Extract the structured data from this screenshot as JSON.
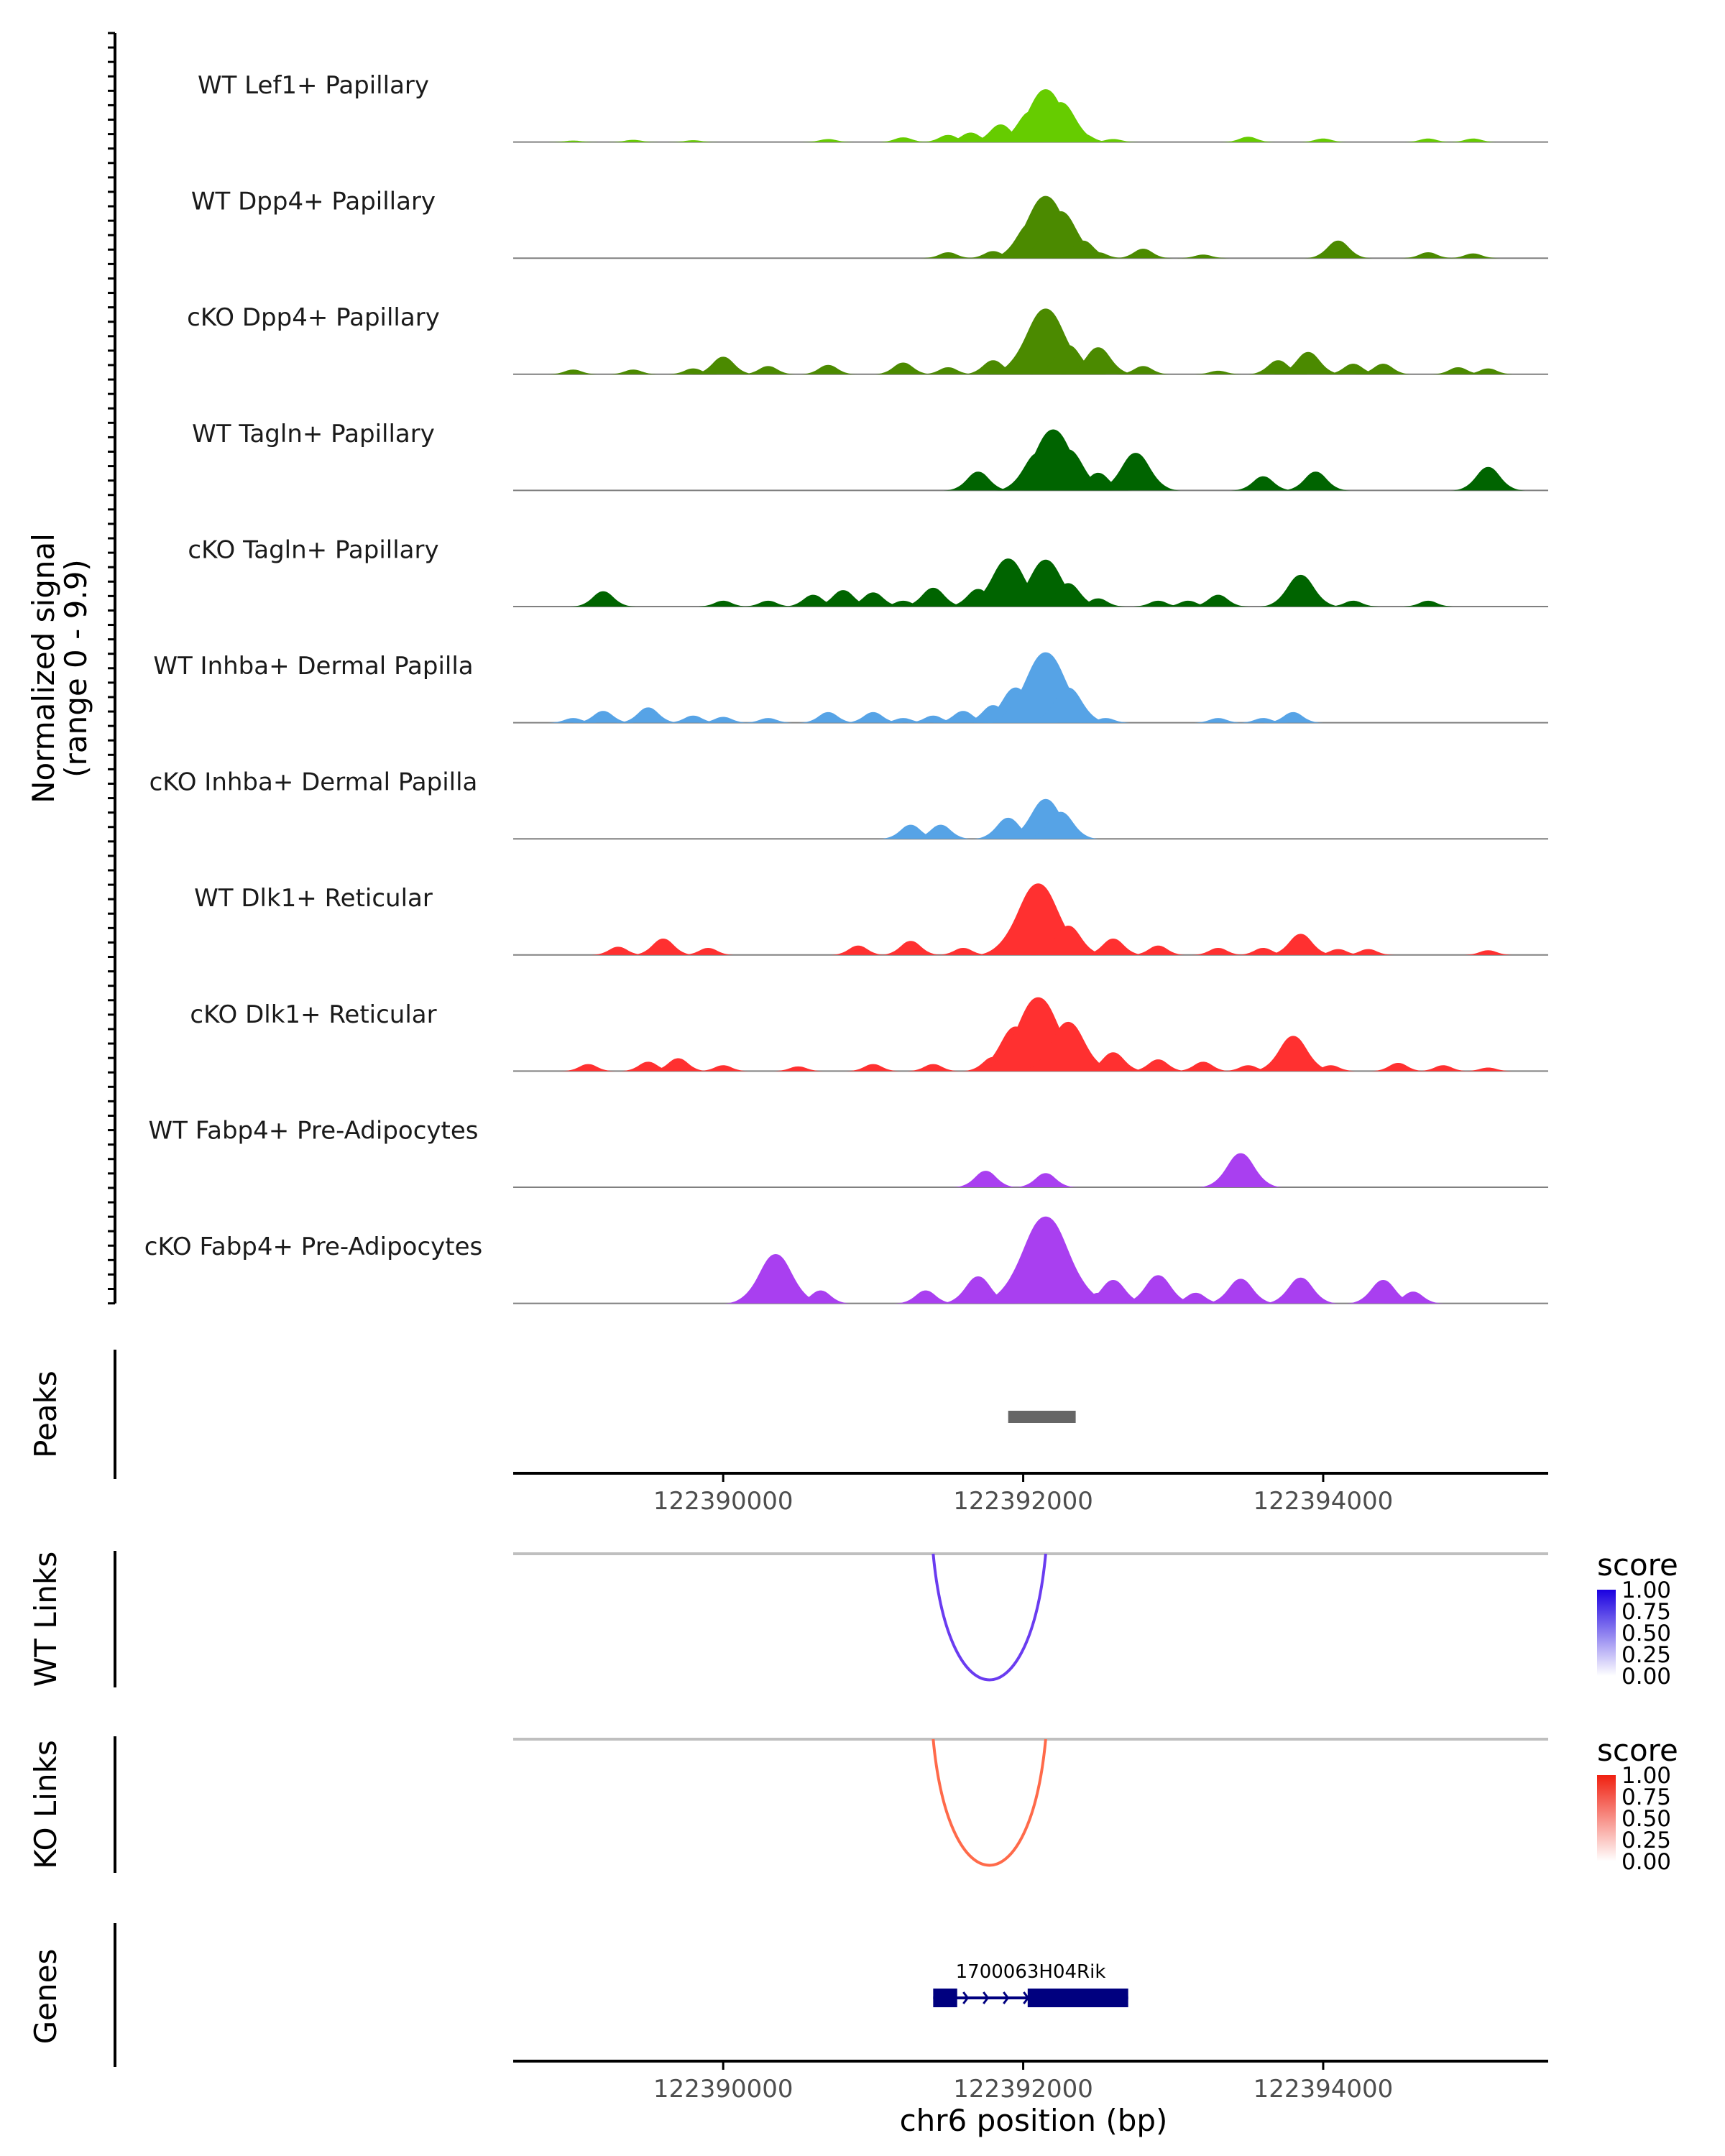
{
  "chart_data": {
    "type": "area",
    "title": "",
    "xlabel": "chr6 position (bp)",
    "xlim": [
      122388600,
      122395500
    ],
    "x_ticks": [
      122390000,
      122392000,
      122394000
    ],
    "x_tick_labels": [
      "122390000",
      "122392000",
      "122394000"
    ],
    "signal_axis_label": "Normalized signal",
    "signal_range_label": "(range 0 - 9.9)",
    "ylim": [
      0,
      9.9
    ],
    "series": [
      {
        "name": "WT Lef1+ Papillary",
        "color": "#66cc00",
        "points": [
          [
            122389000,
            0.12
          ],
          [
            122389400,
            0.18
          ],
          [
            122389800,
            0.15
          ],
          [
            122390700,
            0.25
          ],
          [
            122391200,
            0.4
          ],
          [
            122391500,
            0.6
          ],
          [
            122391650,
            0.8
          ],
          [
            122391850,
            1.5
          ],
          [
            122391950,
            0.6
          ],
          [
            122392050,
            2.6
          ],
          [
            122392150,
            4.5
          ],
          [
            122392250,
            3.4
          ],
          [
            122392400,
            0.7
          ],
          [
            122392600,
            0.25
          ],
          [
            122393500,
            0.45
          ],
          [
            122394000,
            0.3
          ],
          [
            122394700,
            0.3
          ],
          [
            122395000,
            0.3
          ]
        ]
      },
      {
        "name": "WT Dpp4+ Papillary",
        "color": "#4b8a00",
        "points": [
          [
            122391500,
            0.5
          ],
          [
            122391800,
            0.6
          ],
          [
            122392050,
            3.0
          ],
          [
            122392150,
            5.3
          ],
          [
            122392250,
            4.0
          ],
          [
            122392400,
            1.5
          ],
          [
            122392500,
            0.5
          ],
          [
            122392800,
            0.8
          ],
          [
            122393200,
            0.3
          ],
          [
            122394100,
            1.5
          ],
          [
            122394700,
            0.5
          ],
          [
            122395000,
            0.4
          ]
        ]
      },
      {
        "name": "cKO Dpp4+ Papillary",
        "color": "#4b8a00",
        "points": [
          [
            122389000,
            0.4
          ],
          [
            122389400,
            0.4
          ],
          [
            122389800,
            0.5
          ],
          [
            122390000,
            1.5
          ],
          [
            122390300,
            0.7
          ],
          [
            122390700,
            0.8
          ],
          [
            122391200,
            1.0
          ],
          [
            122391500,
            0.6
          ],
          [
            122391800,
            1.2
          ],
          [
            122392050,
            2.0
          ],
          [
            122392150,
            5.6
          ],
          [
            122392300,
            2.5
          ],
          [
            122392500,
            2.3
          ],
          [
            122392800,
            0.7
          ],
          [
            122393300,
            0.3
          ],
          [
            122393700,
            1.2
          ],
          [
            122393900,
            1.9
          ],
          [
            122394200,
            0.9
          ],
          [
            122394400,
            0.9
          ],
          [
            122394900,
            0.6
          ],
          [
            122395100,
            0.5
          ]
        ]
      },
      {
        "name": "WT Tagln+ Papillary",
        "color": "#006400",
        "points": [
          [
            122391700,
            1.6
          ],
          [
            122392100,
            3.2
          ],
          [
            122392200,
            5.2
          ],
          [
            122392300,
            3.5
          ],
          [
            122392500,
            1.5
          ],
          [
            122392750,
            3.2
          ],
          [
            122393600,
            1.2
          ],
          [
            122393950,
            1.6
          ],
          [
            122395100,
            2.0
          ]
        ]
      },
      {
        "name": "cKO Tagln+ Papillary",
        "color": "#006400",
        "points": [
          [
            122389200,
            1.3
          ],
          [
            122390000,
            0.5
          ],
          [
            122390300,
            0.5
          ],
          [
            122390600,
            1.0
          ],
          [
            122390800,
            1.4
          ],
          [
            122391000,
            1.2
          ],
          [
            122391200,
            0.5
          ],
          [
            122391400,
            1.6
          ],
          [
            122391700,
            1.5
          ],
          [
            122391900,
            4.1
          ],
          [
            122392150,
            4.0
          ],
          [
            122392300,
            2.0
          ],
          [
            122392500,
            0.7
          ],
          [
            122392900,
            0.5
          ],
          [
            122393100,
            0.5
          ],
          [
            122393300,
            1.0
          ],
          [
            122393850,
            2.7
          ],
          [
            122394200,
            0.5
          ],
          [
            122394700,
            0.5
          ]
        ]
      },
      {
        "name": "WT Inhba+ Dermal Papilla",
        "color": "#56a3e6",
        "points": [
          [
            122389000,
            0.4
          ],
          [
            122389200,
            1.0
          ],
          [
            122389500,
            1.3
          ],
          [
            122389800,
            0.6
          ],
          [
            122390000,
            0.5
          ],
          [
            122390300,
            0.4
          ],
          [
            122390700,
            0.9
          ],
          [
            122391000,
            0.9
          ],
          [
            122391200,
            0.4
          ],
          [
            122391400,
            0.6
          ],
          [
            122391600,
            1.0
          ],
          [
            122391800,
            1.5
          ],
          [
            122391950,
            3.0
          ],
          [
            122392150,
            6.0
          ],
          [
            122392300,
            3.0
          ],
          [
            122392550,
            0.4
          ],
          [
            122393300,
            0.4
          ],
          [
            122393600,
            0.4
          ],
          [
            122393800,
            0.9
          ]
        ]
      },
      {
        "name": "cKO Inhba+ Dermal Papilla",
        "color": "#56a3e6",
        "points": [
          [
            122391250,
            1.2
          ],
          [
            122391450,
            1.2
          ],
          [
            122391900,
            1.8
          ],
          [
            122392150,
            3.4
          ],
          [
            122392250,
            2.3
          ]
        ]
      },
      {
        "name": "WT Dlk1+ Reticular",
        "color": "#ff3030",
        "points": [
          [
            122389300,
            0.7
          ],
          [
            122389600,
            1.4
          ],
          [
            122389900,
            0.6
          ],
          [
            122390900,
            0.8
          ],
          [
            122391250,
            1.2
          ],
          [
            122391600,
            0.6
          ],
          [
            122391900,
            1.2
          ],
          [
            122392100,
            6.1
          ],
          [
            122392300,
            2.5
          ],
          [
            122392600,
            1.4
          ],
          [
            122392900,
            0.8
          ],
          [
            122393300,
            0.6
          ],
          [
            122393600,
            0.6
          ],
          [
            122393850,
            1.8
          ],
          [
            122394100,
            0.5
          ],
          [
            122394300,
            0.5
          ],
          [
            122395100,
            0.4
          ]
        ]
      },
      {
        "name": "cKO Dlk1+ Reticular",
        "color": "#ff3030",
        "points": [
          [
            122389100,
            0.6
          ],
          [
            122389500,
            0.8
          ],
          [
            122389700,
            1.1
          ],
          [
            122390000,
            0.5
          ],
          [
            122390500,
            0.4
          ],
          [
            122391000,
            0.6
          ],
          [
            122391400,
            0.6
          ],
          [
            122391800,
            1.2
          ],
          [
            122391950,
            3.8
          ],
          [
            122392100,
            6.3
          ],
          [
            122392300,
            4.2
          ],
          [
            122392600,
            1.6
          ],
          [
            122392900,
            1.0
          ],
          [
            122393200,
            0.8
          ],
          [
            122393500,
            0.5
          ],
          [
            122393800,
            3.0
          ],
          [
            122394050,
            0.5
          ],
          [
            122394500,
            0.7
          ],
          [
            122394800,
            0.5
          ],
          [
            122395100,
            0.3
          ]
        ]
      },
      {
        "name": "WT Fabp4+ Pre-Adipocytes",
        "color": "#a93ff0",
        "points": [
          [
            122391750,
            1.4
          ],
          [
            122392150,
            1.2
          ],
          [
            122393450,
            2.9
          ]
        ]
      },
      {
        "name": "cKO Fabp4+ Pre-Adipocytes",
        "color": "#a93ff0",
        "points": [
          [
            122390350,
            4.2
          ],
          [
            122390650,
            1.1
          ],
          [
            122391350,
            1.1
          ],
          [
            122391700,
            2.3
          ],
          [
            122392150,
            7.4
          ],
          [
            122392500,
            0.9
          ],
          [
            122392600,
            2.0
          ],
          [
            122392900,
            2.4
          ],
          [
            122393150,
            0.9
          ],
          [
            122393450,
            2.1
          ],
          [
            122393850,
            2.2
          ],
          [
            122394400,
            2.0
          ],
          [
            122394600,
            1.0
          ]
        ]
      }
    ],
    "peaks": {
      "label": "Peaks",
      "ranges": [
        [
          122391900,
          122392350
        ]
      ]
    },
    "links": [
      {
        "label": "WT Links",
        "start": 122391400,
        "end": 122392150,
        "score": 0.75,
        "color": "#6a3cf0",
        "legend_title": "score",
        "legend_ticks": [
          "1.00",
          "0.75",
          "0.50",
          "0.25",
          "0.00"
        ],
        "legend_high": "#1a00e0"
      },
      {
        "label": "KO Links",
        "start": 122391400,
        "end": 122392150,
        "score": 0.75,
        "color": "#ff6a4a",
        "legend_title": "score",
        "legend_ticks": [
          "1.00",
          "0.75",
          "0.50",
          "0.25",
          "0.00"
        ],
        "legend_high": "#f02010"
      }
    ],
    "genes": {
      "label": "Genes",
      "items": [
        {
          "name": "1700063H04Rik",
          "start": 122391400,
          "end": 122392700,
          "exons": [
            [
              122391400,
              122391560
            ],
            [
              122392030,
              122392700
            ]
          ],
          "strand": "+",
          "color": "#00007f"
        }
      ]
    }
  }
}
